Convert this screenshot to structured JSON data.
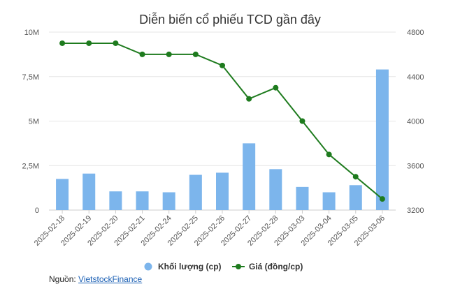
{
  "chart_data": {
    "type": "bar+line",
    "title": "Diễn biến cổ phiếu TCD gần đây",
    "categories": [
      "2025-02-18",
      "2025-02-19",
      "2025-02-20",
      "2025-02-21",
      "2025-02-24",
      "2025-02-25",
      "2025-02-26",
      "2025-02-27",
      "2025-02-28",
      "2025-03-03",
      "2025-03-04",
      "2025-03-05",
      "2025-03-06"
    ],
    "series": [
      {
        "name": "Khối lượng (cp)",
        "type": "bar",
        "axis": "left",
        "color": "#7cb5ec",
        "values": [
          1750000,
          2050000,
          1050000,
          1050000,
          1000000,
          1980000,
          2100000,
          3750000,
          2300000,
          1300000,
          1000000,
          1400000,
          7900000
        ]
      },
      {
        "name": "Giá (đồng/cp)",
        "type": "line",
        "axis": "right",
        "color": "#1e7b1e",
        "values": [
          4700,
          4700,
          4700,
          4600,
          4600,
          4600,
          4500,
          4200,
          4300,
          4000,
          3700,
          3500,
          3300
        ]
      }
    ],
    "y_left": {
      "min": 0,
      "max": 10000000,
      "ticks": [
        0,
        2500000,
        5000000,
        7500000,
        10000000
      ],
      "tick_labels": [
        "0",
        "2,5M",
        "5M",
        "7,5M",
        "10M"
      ]
    },
    "y_right": {
      "min": 3200,
      "max": 4800,
      "ticks": [
        3200,
        3600,
        4000,
        4400,
        4800
      ],
      "tick_labels": [
        "3200",
        "3600",
        "4000",
        "4400",
        "4800"
      ]
    },
    "grid": true,
    "legend_position": "bottom"
  },
  "source": {
    "label": "Nguồn:",
    "link_text": "VietstockFinance"
  }
}
